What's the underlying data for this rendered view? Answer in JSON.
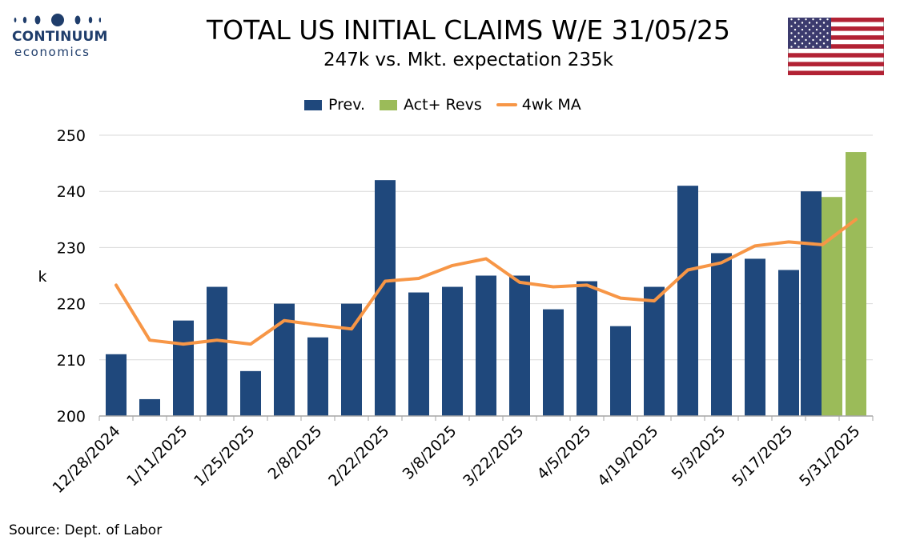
{
  "logo": {
    "name": "CONTINUUM",
    "sub": "economics"
  },
  "header": {
    "title": "TOTAL US INITIAL CLAIMS W/E 31/05/25",
    "subtitle": "247k vs. Mkt. expectation 235k"
  },
  "flag": {
    "icon": "us-flag-icon"
  },
  "legend": {
    "prev": "Prev.",
    "act": "Act+ Revs",
    "ma": "4wk MA"
  },
  "footer": {
    "source": "Source: Dept. of Labor"
  },
  "colors": {
    "prev": "#1f487c",
    "act": "#9bbb59",
    "ma": "#f79646",
    "grid": "#d9d9d9"
  },
  "chart_data": {
    "type": "bar",
    "categories": [
      "12/28/2024",
      "1/4/2025",
      "1/11/2025",
      "1/18/2025",
      "1/25/2025",
      "2/1/2025",
      "2/8/2025",
      "2/15/2025",
      "2/22/2025",
      "3/1/2025",
      "3/8/2025",
      "3/15/2025",
      "3/22/2025",
      "3/29/2025",
      "4/5/2025",
      "4/12/2025",
      "4/19/2025",
      "4/26/2025",
      "5/3/2025",
      "5/10/2025",
      "5/17/2025",
      "5/24/2025",
      "5/31/2025"
    ],
    "tick_labels": [
      "12/28/2024",
      "1/11/2025",
      "1/25/2025",
      "2/8/2025",
      "2/22/2025",
      "3/8/2025",
      "3/22/2025",
      "4/5/2025",
      "4/19/2025",
      "5/3/2025",
      "5/17/2025",
      "5/31/2025"
    ],
    "series": [
      {
        "name": "Prev.",
        "type": "bar",
        "values": [
          211,
          203,
          217,
          223,
          208,
          220,
          214,
          220,
          242,
          222,
          223,
          225,
          225,
          219,
          224,
          216,
          223,
          241,
          229,
          228,
          226,
          240,
          null
        ]
      },
      {
        "name": "Act+ Revs",
        "type": "bar",
        "values": [
          null,
          null,
          null,
          null,
          null,
          null,
          null,
          null,
          null,
          null,
          null,
          null,
          null,
          null,
          null,
          null,
          null,
          null,
          null,
          null,
          null,
          239,
          247
        ]
      },
      {
        "name": "4wk MA",
        "type": "line",
        "values": [
          223.3,
          213.5,
          212.8,
          213.5,
          212.8,
          217,
          216.2,
          215.5,
          224,
          224.5,
          226.8,
          228,
          223.8,
          223,
          223.3,
          221,
          220.5,
          226,
          227.3,
          230.3,
          231,
          230.5,
          235
        ]
      }
    ],
    "ylabel": "k",
    "ylim": [
      200,
      250
    ],
    "yticks": [
      200,
      210,
      220,
      230,
      240,
      250
    ],
    "grid": true,
    "legend_position": "top"
  }
}
